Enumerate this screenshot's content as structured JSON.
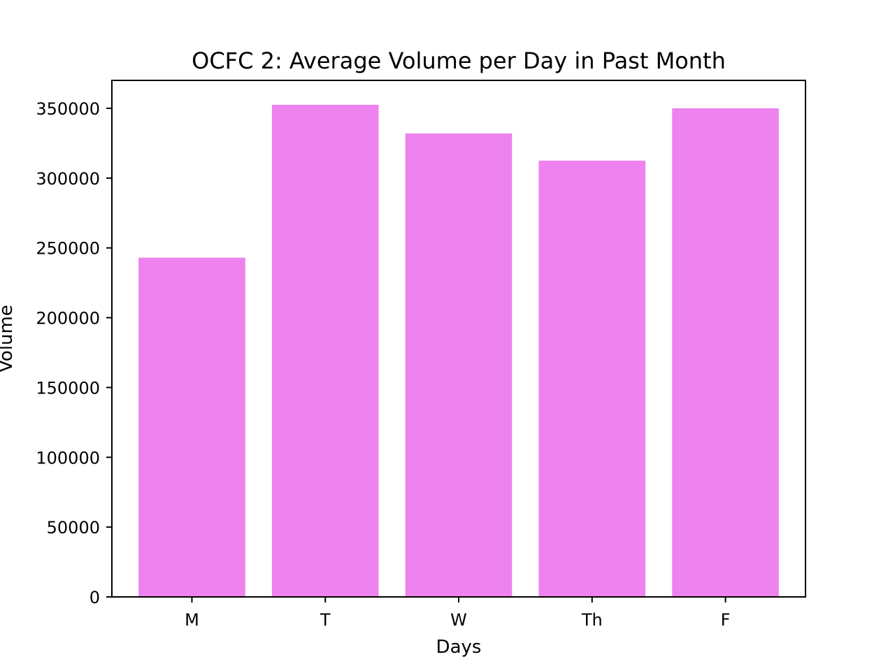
{
  "chart_data": {
    "type": "bar",
    "title": "OCFC 2: Average Volume per Day in Past Month",
    "xlabel": "Days",
    "ylabel": "Volume",
    "categories": [
      "M",
      "T",
      "W",
      "Th",
      "F"
    ],
    "values": [
      243000,
      352500,
      332000,
      312500,
      350000
    ],
    "ylim": [
      0,
      370000
    ],
    "yticks": [
      0,
      50000,
      100000,
      150000,
      200000,
      250000,
      300000,
      350000
    ],
    "ytick_labels": [
      "0",
      "50000",
      "100000",
      "150000",
      "200000",
      "250000",
      "300000",
      "350000"
    ],
    "bar_color": "#ee82ee",
    "grid": false,
    "legend": "none"
  }
}
